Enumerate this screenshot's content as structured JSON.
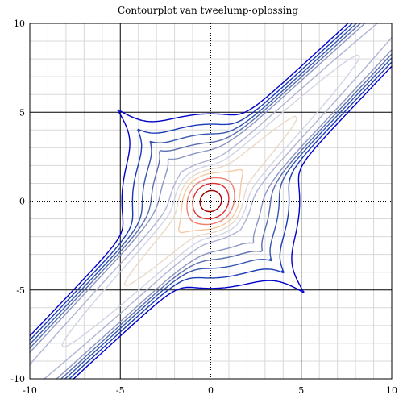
{
  "chart_data": {
    "type": "contour",
    "title": "Contourplot van tweelump-oplossing",
    "xlabel": "",
    "ylabel": "",
    "xlim": [
      -10,
      10
    ],
    "ylim": [
      -10,
      10
    ],
    "x_ticks": [
      -10,
      -5,
      0,
      5,
      10
    ],
    "y_ticks": [
      -10,
      -5,
      0,
      5,
      10
    ],
    "major_grid": true,
    "minor_grid": true,
    "levels_outer": [
      0.03,
      0.05,
      0.08,
      0.12,
      0.18
    ],
    "levels_ridge": [
      0.4,
      0.7,
      1.2,
      2.0
    ],
    "levels_center": [
      3.5,
      6.0,
      10.0
    ],
    "colors": {
      "outer": [
        "#0000cc",
        "#1a3ab8",
        "#3355b0",
        "#5a6eb0",
        "#8c96c4"
      ],
      "ridge": [
        "#b0b4d6",
        "#d2d4e6",
        "#e9d9c8",
        "#f7c9a0"
      ],
      "center": [
        "#f08070",
        "#e03030",
        "#a00000"
      ],
      "major_grid": "#000000",
      "minor_grid": "#d8d8d8",
      "axis_zero": "#000000"
    }
  }
}
